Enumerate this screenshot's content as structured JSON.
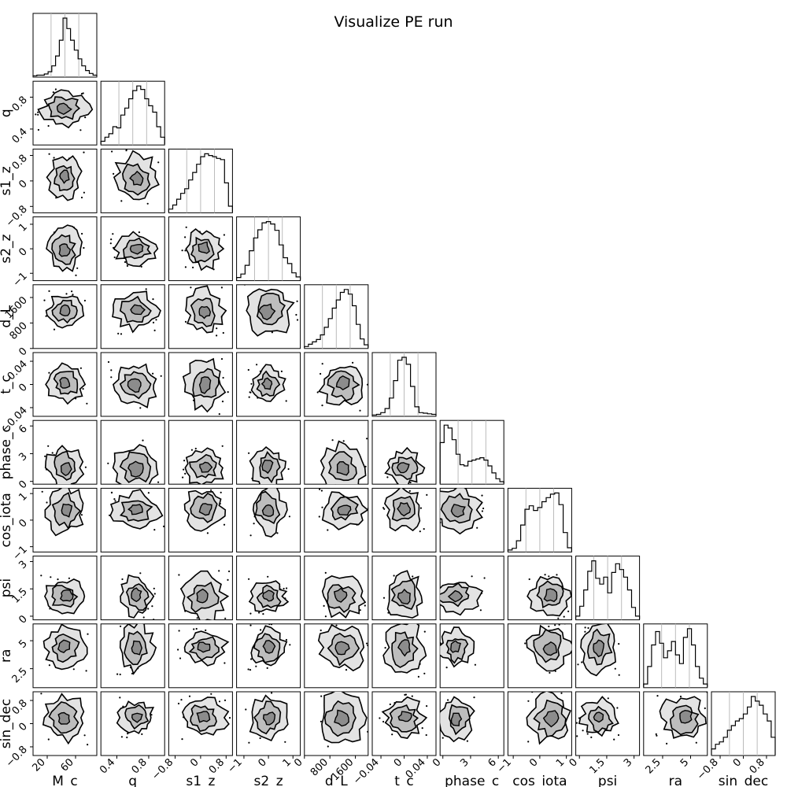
{
  "title": "Visualize PE run",
  "chart_data": {
    "type": "corner",
    "title": "Visualize PE run",
    "parameters": [
      {
        "label": "M_c",
        "ticks": [
          20,
          60
        ],
        "range": [
          0,
          90
        ],
        "hist": [
          0.01,
          0.02,
          0.02,
          0.04,
          0.08,
          0.18,
          0.35,
          0.62,
          1.0,
          0.82,
          0.62,
          0.45,
          0.3,
          0.18,
          0.1,
          0.05,
          0.02
        ]
      },
      {
        "label": "q",
        "ticks": [
          0.4,
          0.8
        ],
        "range": [
          0.2,
          1.0
        ],
        "hist": [
          0.05,
          0.12,
          0.18,
          0.3,
          0.28,
          0.5,
          0.62,
          0.78,
          0.92,
          1.0,
          0.94,
          0.78,
          0.66,
          0.55,
          0.3,
          0.12
        ]
      },
      {
        "label": "s1_z",
        "ticks": [
          -0.8,
          0.0,
          0.8
        ],
        "range": [
          -1.0,
          1.0
        ],
        "hist": [
          0.05,
          0.12,
          0.22,
          0.32,
          0.4,
          0.55,
          0.68,
          0.82,
          0.95,
          1.0,
          0.97,
          0.95,
          0.92,
          0.9,
          0.5,
          0.1
        ]
      },
      {
        "label": "s2_z",
        "ticks": [
          -1,
          0,
          1
        ],
        "range": [
          -1.3,
          1.3
        ],
        "hist": [
          0.04,
          0.1,
          0.25,
          0.5,
          0.72,
          0.86,
          0.98,
          1.0,
          0.96,
          0.85,
          0.6,
          0.38,
          0.28,
          0.12,
          0.05
        ]
      },
      {
        "label": "d_L",
        "ticks": [
          0,
          800,
          1600
        ],
        "range": [
          0,
          2000
        ],
        "hist": [
          0.02,
          0.06,
          0.1,
          0.14,
          0.22,
          0.35,
          0.5,
          0.68,
          0.82,
          0.95,
          1.0,
          0.92,
          0.72,
          0.4,
          0.15,
          0.05
        ]
      },
      {
        "label": "t_c",
        "ticks": [
          -0.04,
          0.0,
          0.04
        ],
        "range": [
          -0.055,
          0.055
        ],
        "hist": [
          0.01,
          0.02,
          0.05,
          0.12,
          0.3,
          0.6,
          0.95,
          1.0,
          0.88,
          0.5,
          0.15,
          0.05,
          0.04,
          0.03,
          0.02
        ]
      },
      {
        "label": "phase_c",
        "ticks": [
          0,
          3,
          6
        ],
        "range": [
          -0.3,
          6.6
        ],
        "hist": [
          0.7,
          1.0,
          0.95,
          0.75,
          0.5,
          0.32,
          0.3,
          0.38,
          0.4,
          0.42,
          0.44,
          0.4,
          0.3,
          0.18,
          0.08,
          0.03
        ]
      },
      {
        "label": "cos_iota",
        "ticks": [
          -1,
          0,
          1
        ],
        "range": [
          -1.2,
          1.2
        ],
        "hist": [
          0.02,
          0.05,
          0.18,
          0.45,
          0.72,
          0.78,
          0.7,
          0.75,
          0.85,
          0.92,
          0.98,
          1.0,
          0.8,
          0.32,
          0.06
        ]
      },
      {
        "label": "psi",
        "ticks": [
          0.0,
          1.5,
          3.0
        ],
        "range": [
          -0.2,
          3.3
        ],
        "hist": [
          0.05,
          0.22,
          0.5,
          0.82,
          1.0,
          0.7,
          0.6,
          0.72,
          0.45,
          0.8,
          0.95,
          0.85,
          0.72,
          0.5,
          0.2,
          0.05
        ]
      },
      {
        "label": "ra",
        "ticks": [
          2.5,
          5.0
        ],
        "range": [
          0.8,
          6.5
        ],
        "hist": [
          0.05,
          0.35,
          0.72,
          0.95,
          0.75,
          0.5,
          0.62,
          0.78,
          0.55,
          0.4,
          0.85,
          1.0,
          0.72,
          0.35,
          0.15,
          0.05
        ]
      },
      {
        "label": "sin_dec",
        "ticks": [
          -0.8,
          0.0,
          0.8
        ],
        "range": [
          -1.1,
          1.1
        ],
        "hist": [
          0.1,
          0.18,
          0.22,
          0.3,
          0.42,
          0.5,
          0.58,
          0.62,
          0.7,
          0.82,
          1.0,
          0.92,
          0.85,
          0.7,
          0.58,
          0.3
        ]
      }
    ],
    "histogram_quantile_lines": true,
    "contour_levels": 3
  }
}
